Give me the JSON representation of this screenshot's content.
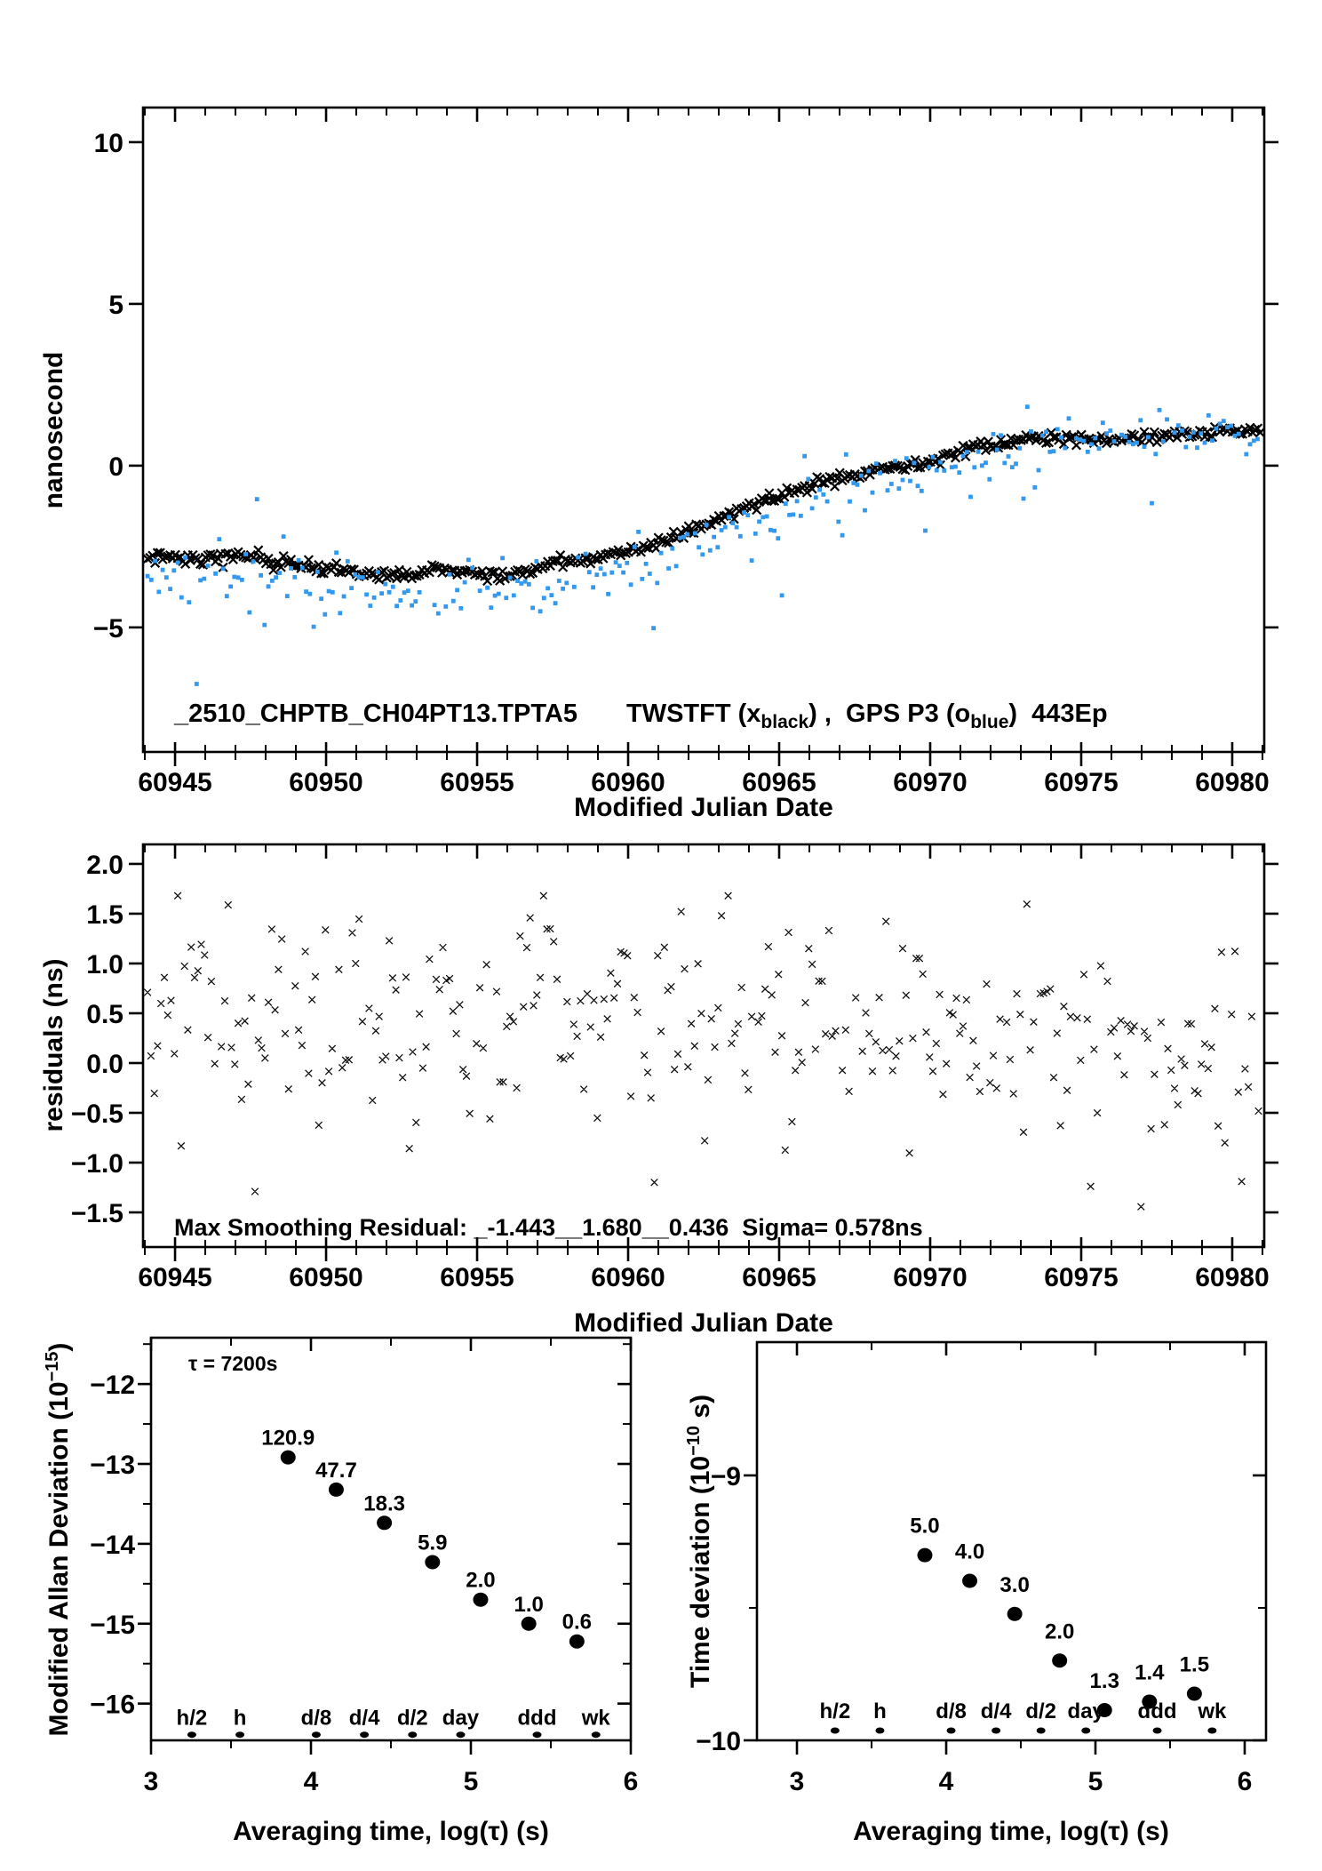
{
  "colors": {
    "black": "#000000",
    "blue": "#3399ee",
    "red": "#ee0000",
    "background": "#ffffff"
  },
  "chart_data": [
    {
      "type": "scatter",
      "title": "_2510_CHPTB_CH04PT13.TPTA5",
      "legend_parts": [
        {
          "t": "TWSTFT (x"
        },
        {
          "sub": "black"
        },
        {
          "t": ") ,  GPS P3 (o"
        },
        {
          "sub": "blue"
        },
        {
          "t": ")  443Ep"
        }
      ],
      "xlabel": "Modified Julian Date",
      "ylabel": "nanosecond",
      "xlim": [
        60943.94,
        60981.06
      ],
      "ylim": [
        -8.85,
        11.07
      ],
      "xticks": [
        60945,
        60950,
        60955,
        60960,
        60965,
        60970,
        60975,
        60980
      ],
      "yticks": [
        {
          "v": -5,
          "l": "-5"
        },
        {
          "v": 0,
          "l": "0"
        },
        {
          "v": 5,
          "l": "5"
        },
        {
          "v": 10,
          "l": "10"
        }
      ],
      "series": [
        {
          "name": "TWSTFT",
          "marker": "x",
          "color": "#000000",
          "per_day": 12,
          "sigma": 0.09,
          "drop": 0.0,
          "trend": [
            [
              60944.0,
              -2.78
            ],
            [
              60945.5,
              -2.88
            ],
            [
              60947.3,
              -2.78
            ],
            [
              60949.3,
              -3.1
            ],
            [
              60951.0,
              -3.32
            ],
            [
              60952.6,
              -3.42
            ],
            [
              60953.6,
              -3.15
            ],
            [
              60955.3,
              -3.42
            ],
            [
              60956.5,
              -3.35
            ],
            [
              60957.6,
              -3.0
            ],
            [
              60959.0,
              -2.82
            ],
            [
              60960.5,
              -2.55
            ],
            [
              60962.0,
              -2.05
            ],
            [
              60963.5,
              -1.45
            ],
            [
              60965.0,
              -0.85
            ],
            [
              60966.3,
              -0.5
            ],
            [
              60967.5,
              -0.3
            ],
            [
              60968.6,
              -0.1
            ],
            [
              60970.0,
              0.2
            ],
            [
              60971.6,
              0.6
            ],
            [
              60973.0,
              0.8
            ],
            [
              60974.5,
              0.9
            ],
            [
              60975.8,
              0.75
            ],
            [
              60977.0,
              0.85
            ],
            [
              60978.5,
              1.0
            ],
            [
              60980.0,
              1.05
            ],
            [
              60981.0,
              1.15
            ]
          ]
        },
        {
          "name": "GPS P3",
          "marker": "square",
          "color": "#3399ee",
          "per_day": 8,
          "sigma": 0.42,
          "drop": 0.07,
          "outlier_rate": 0.04,
          "outlier_min": 0.9,
          "outlier_max": 2.1,
          "trend": [
            [
              60944.0,
              -3.3
            ],
            [
              60946.0,
              -3.45
            ],
            [
              60948.0,
              -3.5
            ],
            [
              60950.0,
              -3.8
            ],
            [
              60951.5,
              -3.95
            ],
            [
              60953.0,
              -4.05
            ],
            [
              60954.5,
              -3.95
            ],
            [
              60956.0,
              -3.9
            ],
            [
              60958.0,
              -3.55
            ],
            [
              60960.0,
              -3.1
            ],
            [
              60962.0,
              -2.55
            ],
            [
              60964.0,
              -1.9
            ],
            [
              60966.0,
              -1.1
            ],
            [
              60968.0,
              -0.55
            ],
            [
              60970.0,
              -0.1
            ],
            [
              60972.0,
              0.35
            ],
            [
              60974.0,
              0.7
            ],
            [
              60976.0,
              0.75
            ],
            [
              60978.0,
              0.9
            ],
            [
              60981.0,
              1.05
            ]
          ]
        }
      ]
    },
    {
      "type": "scatter",
      "ylabel": "residuals (ns)",
      "xlabel": "Modified Julian Date",
      "annotation": "Max Smoothing Residual: _-1.443__1.680__0.436  Sigma= 0.578ns",
      "max_residual": 1.68,
      "min_residual": -1.443,
      "sigma_ns": 0.578,
      "xlim": [
        60943.94,
        60981.06
      ],
      "ylim": [
        -1.848,
        2.196
      ],
      "xticks": [
        60945,
        60950,
        60955,
        60960,
        60965,
        60970,
        60975,
        60980
      ],
      "yticks": [
        {
          "v": 2.0,
          "l": "2.0"
        },
        {
          "v": 1.5,
          "l": "1.5"
        },
        {
          "v": 1.0,
          "l": "1.0"
        },
        {
          "v": 0.5,
          "l": "0.5"
        },
        {
          "v": 0.0,
          "l": "0.0"
        },
        {
          "v": -0.5,
          "l": "-0.5"
        },
        {
          "v": -1.0,
          "l": "-1.0"
        },
        {
          "v": -1.5,
          "l": "-1.5"
        }
      ],
      "series": [
        {
          "name": "residuals",
          "marker": "x-small",
          "color": "#111111",
          "per_day": 9,
          "sigma": 0.55,
          "drop": 0.06,
          "clamp": [
            -1.443,
            1.68
          ],
          "trend": [
            [
              60944,
              0.5
            ],
            [
              60947,
              0.35
            ],
            [
              60950,
              0.45
            ],
            [
              60953,
              0.4
            ],
            [
              60956,
              0.45
            ],
            [
              60959,
              0.5
            ],
            [
              60962,
              0.45
            ],
            [
              60965,
              0.5
            ],
            [
              60967,
              0.4
            ],
            [
              60969,
              0.35
            ],
            [
              60971,
              0.3
            ],
            [
              60973,
              0.28
            ],
            [
              60975,
              0.2
            ],
            [
              60977,
              0.15
            ],
            [
              60979,
              0.08
            ],
            [
              60981,
              0.0
            ]
          ]
        }
      ]
    },
    {
      "type": "labeled-points",
      "ylabel_parts": {
        "pre": "Modified Allan Deviation (10",
        "sup": "-15",
        "post": ")"
      },
      "xlabel": "Averaging time, log(τ) (s)",
      "annotation": "τ = 7200s",
      "unit_exp": -15,
      "xlim": [
        3,
        6
      ],
      "ylim": [
        -16.46,
        -11.42
      ],
      "xticks": [
        {
          "v": 3,
          "l": "3"
        },
        {
          "v": 4,
          "l": "4"
        },
        {
          "v": 5,
          "l": "5"
        },
        {
          "v": 6,
          "l": "6"
        }
      ],
      "xminor": [
        3.5,
        4.5,
        5.5
      ],
      "yticks": [
        {
          "v": -12,
          "l": "-12"
        },
        {
          "v": -13,
          "l": "-13"
        },
        {
          "v": -14,
          "l": "-14"
        },
        {
          "v": -15,
          "l": "-15"
        },
        {
          "v": -16,
          "l": "-16"
        }
      ],
      "yminor": [
        -11.5,
        -12.5,
        -13.5,
        -14.5,
        -15.5
      ],
      "points": [
        {
          "log_tau": 3.857,
          "value": 120.9,
          "label": "120.9"
        },
        {
          "log_tau": 4.158,
          "value": 47.7,
          "label": "47.7"
        },
        {
          "log_tau": 4.459,
          "value": 18.3,
          "label": "18.3"
        },
        {
          "log_tau": 4.76,
          "value": 5.9,
          "label": "5.9"
        },
        {
          "log_tau": 5.061,
          "value": 2.0,
          "label": "2.0"
        },
        {
          "log_tau": 5.362,
          "value": 1.0,
          "label": "1.0"
        },
        {
          "log_tau": 5.663,
          "value": 0.6,
          "label": "0.6"
        }
      ],
      "axis_markers": {
        "y": -16.39,
        "items": [
          {
            "log_tau": 3.255,
            "label": "h/2"
          },
          {
            "log_tau": 3.556,
            "label": "h"
          },
          {
            "log_tau": 4.033,
            "label": "d/8"
          },
          {
            "log_tau": 4.334,
            "label": "d/4"
          },
          {
            "log_tau": 4.635,
            "label": "d/2"
          },
          {
            "log_tau": 4.936,
            "label": "day"
          },
          {
            "log_tau": 5.414,
            "label": "ddd"
          },
          {
            "log_tau": 5.782,
            "label": "wk"
          }
        ]
      }
    },
    {
      "type": "labeled-points",
      "ylabel_parts": {
        "pre": "Time deviation (10",
        "sup": "-10",
        "post": " s)"
      },
      "xlabel": "Averaging time, log(τ) (s)",
      "unit_exp": -10,
      "xlim": [
        2.732,
        6.143
      ],
      "ylim": [
        -10.0,
        -8.497
      ],
      "xticks": [
        {
          "v": 3,
          "l": "3"
        },
        {
          "v": 4,
          "l": "4"
        },
        {
          "v": 5,
          "l": "5"
        },
        {
          "v": 6,
          "l": "6"
        }
      ],
      "xminor": [
        3.5,
        4.5,
        5.5
      ],
      "yticks": [
        {
          "v": -9,
          "l": "-9"
        },
        {
          "v": -10,
          "l": "-10"
        }
      ],
      "yminor": [
        -9.5
      ],
      "points": [
        {
          "log_tau": 3.857,
          "value": 5.0,
          "label": "5.0"
        },
        {
          "log_tau": 4.158,
          "value": 4.0,
          "label": "4.0"
        },
        {
          "log_tau": 4.459,
          "value": 3.0,
          "label": "3.0"
        },
        {
          "log_tau": 4.76,
          "value": 2.0,
          "label": "2.0"
        },
        {
          "log_tau": 5.061,
          "value": 1.3,
          "label": "1.3"
        },
        {
          "log_tau": 5.362,
          "value": 1.4,
          "label": "1.4"
        },
        {
          "log_tau": 5.663,
          "value": 1.5,
          "label": "1.5"
        }
      ],
      "axis_markers": {
        "y": -9.963,
        "items": [
          {
            "log_tau": 3.255,
            "label": "h/2"
          },
          {
            "log_tau": 3.556,
            "label": "h"
          },
          {
            "log_tau": 4.033,
            "label": "d/8"
          },
          {
            "log_tau": 4.334,
            "label": "d/4"
          },
          {
            "log_tau": 4.635,
            "label": "d/2"
          },
          {
            "log_tau": 4.936,
            "label": "day"
          },
          {
            "log_tau": 5.414,
            "label": "ddd"
          },
          {
            "log_tau": 5.782,
            "label": "wk"
          }
        ]
      }
    }
  ]
}
